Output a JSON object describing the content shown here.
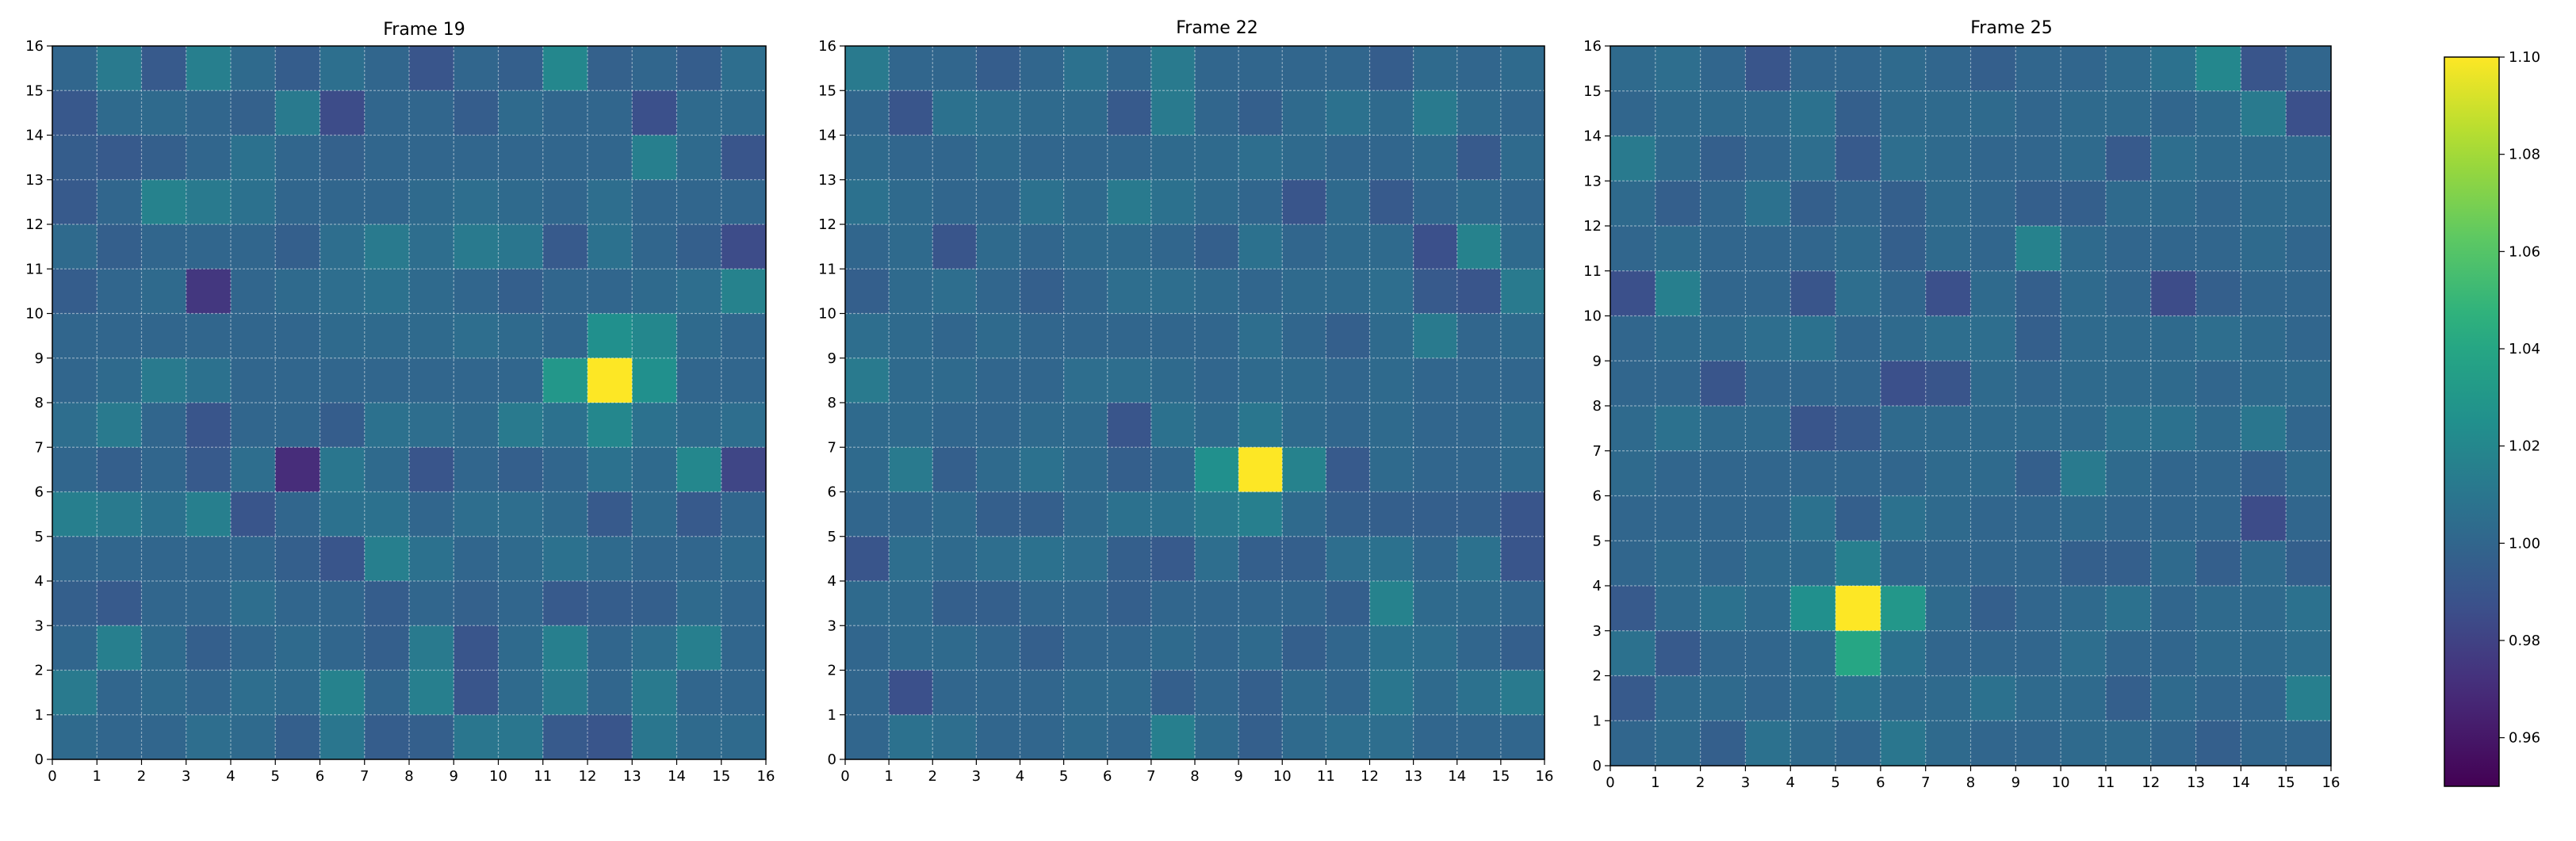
{
  "chart_data": [
    {
      "type": "heatmap",
      "title": "Frame 19",
      "xlim": [
        0,
        16
      ],
      "ylim": [
        0,
        16
      ],
      "xticks": [
        0,
        1,
        2,
        3,
        4,
        5,
        6,
        7,
        8,
        9,
        10,
        11,
        12,
        13,
        14,
        15,
        16
      ],
      "yticks": [
        0,
        1,
        2,
        3,
        4,
        5,
        6,
        7,
        8,
        9,
        10,
        11,
        12,
        13,
        14,
        15,
        16
      ],
      "grid": true,
      "rows_top_to_bottom": [
        [
          1.0,
          1.012,
          0.993,
          1.015,
          1.003,
          0.995,
          1.006,
          1.0,
          0.99,
          1.0,
          0.996,
          1.02,
          0.997,
          1.0,
          0.995,
          1.005
        ],
        [
          0.992,
          1.003,
          1.003,
          1.0,
          0.997,
          1.012,
          0.985,
          1.0,
          1.0,
          0.995,
          1.003,
          1.0,
          1.0,
          0.987,
          1.003,
          1.003
        ],
        [
          0.995,
          0.993,
          0.996,
          1.0,
          1.007,
          1.0,
          0.997,
          1.0,
          1.0,
          1.0,
          1.0,
          1.0,
          1.0,
          1.015,
          1.003,
          0.99
        ],
        [
          0.993,
          1.0,
          1.017,
          1.012,
          1.007,
          1.0,
          1.0,
          1.0,
          1.003,
          1.005,
          1.003,
          1.0,
          1.005,
          1.0,
          1.0,
          1.0
        ],
        [
          1.003,
          0.996,
          1.0,
          1.0,
          1.0,
          0.996,
          1.005,
          1.012,
          1.005,
          1.012,
          1.01,
          0.993,
          1.007,
          1.0,
          0.996,
          0.985
        ],
        [
          0.995,
          1.0,
          1.003,
          0.975,
          1.0,
          1.003,
          1.005,
          1.007,
          1.003,
          1.0,
          0.996,
          1.0,
          1.0,
          1.003,
          1.005,
          1.017
        ],
        [
          1.0,
          1.0,
          1.0,
          1.0,
          1.0,
          1.0,
          1.003,
          1.003,
          1.003,
          1.005,
          1.003,
          1.0,
          1.025,
          1.02,
          1.003,
          1.0
        ],
        [
          1.0,
          1.003,
          1.012,
          1.007,
          1.0,
          1.0,
          1.0,
          1.0,
          1.0,
          1.0,
          1.0,
          1.03,
          1.1,
          1.025,
          1.0,
          1.0
        ],
        [
          1.005,
          1.012,
          1.0,
          0.99,
          1.0,
          1.0,
          0.995,
          1.007,
          1.005,
          1.003,
          1.012,
          1.007,
          1.02,
          1.007,
          1.003,
          1.005
        ],
        [
          1.0,
          0.996,
          1.0,
          0.993,
          1.005,
          0.97,
          1.01,
          1.003,
          0.99,
          1.0,
          0.996,
          1.0,
          1.007,
          1.003,
          1.02,
          0.982
        ],
        [
          1.015,
          1.012,
          1.007,
          1.015,
          0.99,
          1.0,
          1.007,
          1.007,
          1.0,
          1.005,
          1.005,
          1.003,
          0.993,
          1.003,
          0.993,
          1.0
        ],
        [
          1.0,
          1.0,
          1.0,
          1.0,
          1.0,
          0.996,
          0.99,
          1.015,
          1.007,
          1.0,
          1.003,
          1.007,
          1.003,
          1.0,
          1.0,
          1.003
        ],
        [
          0.996,
          0.993,
          1.0,
          1.0,
          1.005,
          1.0,
          1.0,
          0.995,
          1.0,
          0.997,
          1.0,
          0.993,
          0.995,
          0.996,
          1.003,
          1.0
        ],
        [
          1.0,
          1.015,
          1.003,
          0.996,
          1.0,
          1.003,
          1.0,
          0.996,
          1.012,
          0.99,
          1.003,
          1.015,
          1.0,
          1.005,
          1.015,
          1.0
        ],
        [
          1.012,
          1.0,
          1.003,
          1.0,
          1.005,
          1.003,
          1.017,
          1.0,
          1.015,
          0.99,
          1.003,
          1.012,
          1.0,
          1.012,
          1.0,
          1.0
        ],
        [
          1.003,
          1.0,
          1.0,
          1.005,
          1.003,
          0.996,
          1.01,
          0.995,
          0.996,
          1.01,
          1.01,
          0.993,
          0.99,
          1.01,
          1.003,
          1.003
        ]
      ]
    },
    {
      "type": "heatmap",
      "title": "Frame 22",
      "xlim": [
        0,
        16
      ],
      "ylim": [
        0,
        16
      ],
      "xticks": [
        0,
        1,
        2,
        3,
        4,
        5,
        6,
        7,
        8,
        9,
        10,
        11,
        12,
        13,
        14,
        15,
        16
      ],
      "yticks": [
        0,
        1,
        2,
        3,
        4,
        5,
        6,
        7,
        8,
        9,
        10,
        11,
        12,
        13,
        14,
        15,
        16
      ],
      "grid": true,
      "rows_top_to_bottom": [
        [
          1.012,
          1.0,
          1.0,
          0.995,
          1.0,
          1.007,
          1.0,
          1.012,
          1.0,
          1.0,
          1.0,
          1.0,
          0.995,
          1.003,
          1.0,
          1.003
        ],
        [
          1.0,
          0.99,
          1.007,
          1.005,
          1.003,
          1.003,
          0.993,
          1.012,
          1.0,
          0.996,
          1.003,
          1.007,
          1.003,
          1.012,
          1.003,
          1.0
        ],
        [
          1.003,
          1.0,
          1.0,
          1.003,
          1.0,
          1.0,
          1.0,
          1.003,
          1.003,
          1.005,
          1.003,
          1.0,
          1.0,
          1.003,
          0.993,
          1.003
        ],
        [
          1.007,
          1.003,
          1.0,
          1.0,
          1.007,
          1.003,
          1.012,
          1.007,
          1.003,
          1.0,
          0.99,
          1.003,
          0.993,
          1.0,
          1.003,
          1.0
        ],
        [
          1.0,
          1.003,
          0.99,
          1.003,
          1.0,
          1.003,
          1.003,
          1.0,
          0.996,
          1.007,
          1.0,
          1.003,
          1.003,
          0.987,
          1.017,
          1.003
        ],
        [
          0.996,
          1.003,
          1.005,
          1.0,
          0.996,
          1.0,
          1.005,
          1.005,
          1.003,
          1.0,
          1.003,
          1.003,
          1.005,
          0.993,
          0.99,
          1.012
        ],
        [
          1.005,
          1.003,
          1.0,
          1.003,
          1.0,
          1.0,
          1.0,
          1.0,
          1.0,
          1.005,
          1.0,
          0.996,
          1.003,
          1.012,
          1.0,
          1.003
        ],
        [
          1.012,
          1.003,
          1.003,
          1.0,
          1.0,
          1.005,
          1.005,
          1.003,
          1.0,
          1.003,
          1.003,
          1.0,
          1.003,
          1.0,
          1.0,
          1.0
        ],
        [
          1.003,
          1.003,
          1.0,
          1.0,
          1.003,
          1.003,
          0.99,
          1.007,
          1.003,
          1.01,
          1.003,
          1.0,
          1.003,
          1.0,
          1.0,
          1.003
        ],
        [
          1.003,
          1.012,
          0.996,
          1.003,
          1.007,
          1.003,
          0.996,
          1.0,
          1.025,
          1.1,
          1.017,
          0.993,
          1.003,
          1.0,
          1.0,
          1.003
        ],
        [
          1.0,
          1.0,
          1.003,
          0.996,
          0.996,
          1.003,
          1.007,
          1.007,
          1.012,
          1.015,
          1.003,
          0.996,
          0.996,
          0.996,
          0.996,
          0.99
        ],
        [
          0.99,
          1.005,
          1.003,
          1.005,
          1.007,
          1.005,
          0.996,
          0.993,
          1.005,
          0.996,
          0.996,
          1.005,
          1.007,
          1.0,
          1.007,
          0.99
        ],
        [
          1.003,
          1.003,
          0.996,
          0.996,
          1.0,
          1.0,
          0.996,
          1.0,
          1.0,
          1.0,
          1.0,
          0.996,
          1.017,
          1.003,
          1.003,
          1.0
        ],
        [
          1.0,
          1.003,
          1.003,
          1.0,
          0.996,
          1.0,
          1.0,
          1.003,
          1.0,
          1.003,
          0.996,
          1.0,
          1.007,
          1.005,
          1.0,
          0.996
        ],
        [
          1.0,
          0.987,
          1.0,
          1.0,
          1.0,
          1.003,
          1.003,
          0.996,
          1.0,
          0.996,
          1.003,
          1.0,
          1.01,
          1.003,
          1.007,
          1.012
        ],
        [
          1.0,
          1.007,
          1.005,
          1.0,
          1.0,
          1.003,
          1.0,
          1.015,
          1.003,
          0.996,
          1.003,
          1.005,
          1.005,
          1.0,
          1.0,
          1.0
        ]
      ]
    },
    {
      "type": "heatmap",
      "title": "Frame 25",
      "xlim": [
        0,
        16
      ],
      "ylim": [
        0,
        16
      ],
      "xticks": [
        0,
        1,
        2,
        3,
        4,
        5,
        6,
        7,
        8,
        9,
        10,
        11,
        12,
        13,
        14,
        15,
        16
      ],
      "yticks": [
        0,
        1,
        2,
        3,
        4,
        5,
        6,
        7,
        8,
        9,
        10,
        11,
        12,
        13,
        14,
        15,
        16
      ],
      "grid": true,
      "rows_top_to_bottom": [
        [
          1.003,
          1.005,
          1.0,
          0.99,
          1.0,
          1.0,
          1.003,
          1.0,
          0.996,
          1.0,
          1.0,
          1.003,
          1.007,
          1.02,
          0.99,
          1.0
        ],
        [
          1.0,
          1.003,
          1.003,
          1.003,
          1.007,
          0.996,
          1.003,
          1.003,
          1.003,
          1.0,
          1.003,
          1.003,
          1.0,
          1.003,
          1.012,
          0.987
        ],
        [
          1.012,
          1.003,
          0.996,
          1.0,
          1.005,
          0.993,
          1.005,
          1.003,
          1.0,
          1.0,
          1.003,
          0.993,
          1.005,
          1.003,
          1.003,
          1.003
        ],
        [
          1.003,
          0.996,
          1.0,
          1.007,
          0.996,
          1.0,
          0.996,
          1.003,
          1.0,
          0.996,
          0.996,
          1.003,
          1.003,
          1.0,
          1.003,
          1.003
        ],
        [
          1.0,
          1.003,
          1.0,
          1.0,
          1.0,
          1.003,
          0.996,
          1.003,
          1.0,
          1.017,
          1.003,
          1.0,
          1.0,
          1.0,
          1.003,
          1.0
        ],
        [
          0.987,
          1.015,
          1.0,
          1.0,
          0.99,
          1.005,
          1.0,
          0.987,
          1.003,
          0.996,
          1.003,
          1.0,
          0.985,
          0.996,
          1.0,
          1.0
        ],
        [
          1.0,
          1.003,
          1.003,
          1.005,
          1.007,
          1.0,
          1.003,
          1.005,
          1.005,
          0.996,
          1.003,
          1.003,
          1.003,
          1.005,
          1.003,
          1.0
        ],
        [
          1.0,
          1.0,
          0.99,
          1.0,
          1.0,
          1.0,
          0.987,
          0.99,
          1.003,
          1.0,
          1.003,
          1.003,
          1.003,
          1.0,
          1.003,
          1.003
        ],
        [
          1.003,
          1.007,
          1.003,
          1.003,
          0.99,
          0.993,
          1.003,
          1.003,
          1.003,
          1.003,
          1.003,
          1.007,
          1.007,
          1.003,
          1.01,
          1.0
        ],
        [
          1.003,
          1.0,
          1.0,
          1.0,
          1.0,
          1.0,
          1.0,
          1.003,
          1.003,
          0.996,
          1.012,
          1.003,
          1.0,
          1.0,
          0.996,
          1.003
        ],
        [
          1.0,
          1.0,
          1.0,
          1.0,
          1.007,
          0.996,
          1.007,
          1.003,
          1.0,
          1.0,
          1.003,
          1.0,
          1.0,
          1.0,
          0.985,
          1.0
        ],
        [
          1.0,
          1.003,
          1.0,
          1.003,
          1.003,
          1.015,
          1.0,
          1.0,
          1.0,
          1.0,
          0.996,
          0.996,
          1.003,
          0.996,
          1.003,
          0.996
        ],
        [
          0.993,
          1.003,
          1.007,
          1.003,
          1.025,
          1.1,
          1.03,
          1.003,
          0.996,
          1.0,
          1.003,
          1.007,
          1.0,
          1.003,
          1.003,
          1.007
        ],
        [
          1.007,
          0.993,
          1.0,
          1.0,
          1.003,
          1.04,
          1.007,
          1.0,
          1.0,
          1.0,
          1.005,
          1.0,
          1.0,
          1.003,
          1.003,
          1.005
        ],
        [
          0.993,
          1.003,
          1.003,
          1.0,
          1.003,
          1.007,
          1.003,
          1.003,
          1.007,
          1.003,
          1.003,
          0.996,
          1.003,
          1.0,
          1.0,
          1.015
        ],
        [
          1.0,
          1.003,
          0.996,
          1.007,
          1.003,
          1.0,
          1.01,
          1.003,
          1.0,
          1.0,
          1.003,
          1.003,
          1.0,
          0.996,
          1.0,
          1.0
        ]
      ]
    }
  ],
  "colorbar": {
    "min": 0.95,
    "max": 1.1,
    "ticks": [
      0.96,
      0.98,
      1.0,
      1.02,
      1.04,
      1.06,
      1.08,
      1.1
    ],
    "tick_labels": [
      "0.96",
      "0.98",
      "1.00",
      "1.02",
      "1.04",
      "1.06",
      "1.08",
      "1.10"
    ],
    "colormap": "viridis"
  }
}
